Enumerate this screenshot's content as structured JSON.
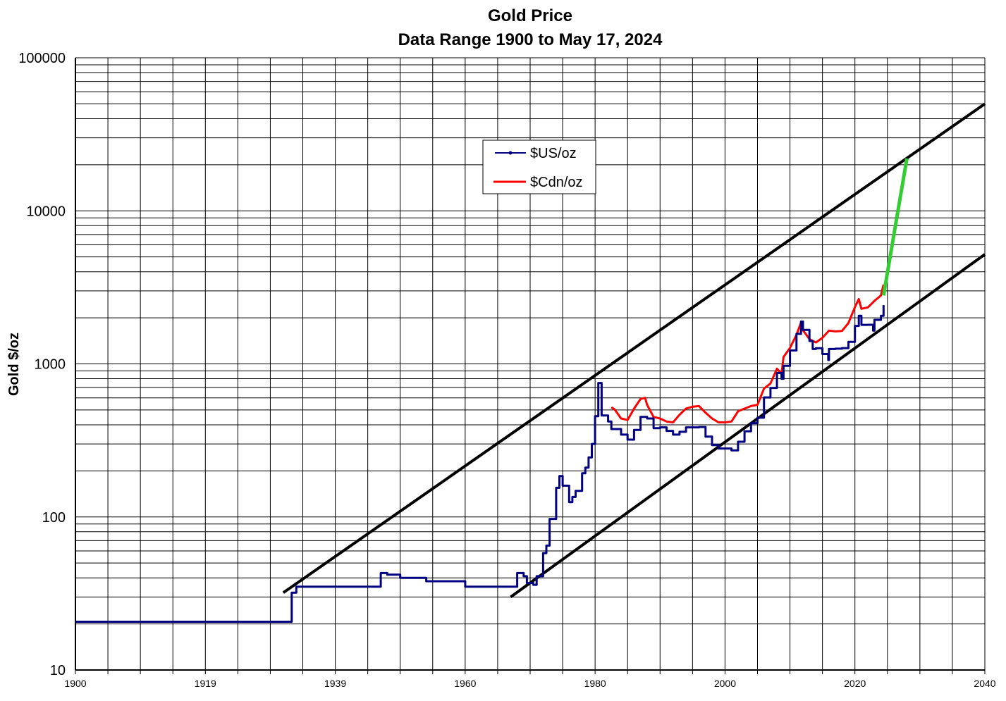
{
  "chart_data": {
    "type": "line",
    "title": "Gold Price",
    "subtitle": "Data Range 1900 to May 17, 2024",
    "xlabel": "",
    "ylabel": "Gold $/oz",
    "xlim": [
      1900,
      2040
    ],
    "ylim": [
      10,
      100000
    ],
    "y_scale": "log",
    "grid": true,
    "x_ticks": [
      "1900",
      "1919",
      "1939",
      "1960",
      "1980",
      "2000",
      "2020",
      "2040"
    ],
    "y_ticks": [
      "10",
      "100",
      "1000",
      "10000",
      "100000"
    ],
    "legend_position": "upper-left",
    "colors": {
      "usd": "#000080",
      "cad": "#ff0000",
      "projection": "#33cc33",
      "channel": "#000000",
      "grid": "#000000"
    },
    "series": [
      {
        "name": "$US/oz",
        "x": [
          1900,
          1933.2,
          1933.3,
          1934,
          1940,
          1943,
          1946.5,
          1947,
          1948,
          1950,
          1952,
          1954,
          1960,
          1962,
          1967,
          1968,
          1968.5,
          1969,
          1969.5,
          1970,
          1970.5,
          1971,
          1972,
          1972.5,
          1973,
          1974,
          1974.5,
          1975,
          1976,
          1976.5,
          1977,
          1978,
          1978.5,
          1979,
          1979.5,
          1980,
          1980.5,
          1981,
          1982,
          1982.5,
          1983,
          1984,
          1985,
          1985.5,
          1986,
          1987,
          1988,
          1989,
          1990,
          1991,
          1992,
          1993,
          1994,
          1995,
          1996,
          1997,
          1998,
          1999,
          2000,
          2001,
          2002,
          2003,
          2004,
          2005,
          2006,
          2007,
          2008,
          2008.7,
          2009,
          2010,
          2011,
          2011.7,
          2012,
          2013,
          2013.5,
          2014,
          2015,
          2015.9,
          2016,
          2017,
          2018,
          2019,
          2020,
          2020.6,
          2021,
          2022,
          2022.8,
          2023,
          2024,
          2024.4
        ],
        "y": [
          20.67,
          20.67,
          32,
          35,
          35,
          35,
          35,
          43,
          42,
          40,
          40,
          38,
          35,
          35,
          35,
          43,
          43,
          41,
          37,
          37,
          36,
          41,
          58,
          65,
          97,
          155,
          185,
          160,
          125,
          135,
          148,
          193,
          210,
          245,
          300,
          455,
          750,
          460,
          420,
          375,
          375,
          345,
          320,
          320,
          370,
          450,
          440,
          380,
          385,
          365,
          345,
          360,
          385,
          385,
          387,
          335,
          295,
          280,
          280,
          272,
          310,
          363,
          410,
          445,
          604,
          697,
          872,
          800,
          972,
          1225,
          1571,
          1890,
          1669,
          1411,
          1250,
          1266,
          1160,
          1060,
          1251,
          1257,
          1268,
          1393,
          1770,
          2060,
          1799,
          1800,
          1650,
          1940,
          2060,
          2420
        ]
      },
      {
        "name": "$Cdn/oz",
        "x": [
          1982.5,
          1983,
          1984,
          1985,
          1986,
          1987,
          1987.7,
          1988,
          1989,
          1990,
          1991,
          1992,
          1993,
          1994,
          1995,
          1996,
          1997,
          1998,
          1999,
          2000,
          2001,
          2002,
          2003,
          2004,
          2005,
          2006,
          2007,
          2008,
          2008.7,
          2009,
          2010,
          2011,
          2011.7,
          2012,
          2013,
          2014,
          2015,
          2016,
          2017,
          2018,
          2019,
          2020,
          2020.6,
          2021,
          2022,
          2023,
          2024,
          2024.4
        ],
        "y": [
          520,
          505,
          440,
          430,
          510,
          590,
          600,
          540,
          450,
          440,
          420,
          415,
          465,
          510,
          525,
          530,
          480,
          440,
          415,
          415,
          420,
          490,
          510,
          530,
          540,
          690,
          745,
          930,
          860,
          1110,
          1270,
          1550,
          1860,
          1660,
          1450,
          1380,
          1480,
          1650,
          1630,
          1640,
          1850,
          2350,
          2650,
          2290,
          2340,
          2580,
          2800,
          3300
        ]
      },
      {
        "name": "",
        "x": [
          2024.4,
          2028
        ],
        "y": [
          2800,
          22000
        ]
      }
    ],
    "trend_lines": [
      {
        "x": [
          1932,
          2040
        ],
        "y": [
          32,
          50000
        ]
      },
      {
        "x": [
          1967,
          2040
        ],
        "y": [
          30,
          5200
        ]
      }
    ]
  }
}
